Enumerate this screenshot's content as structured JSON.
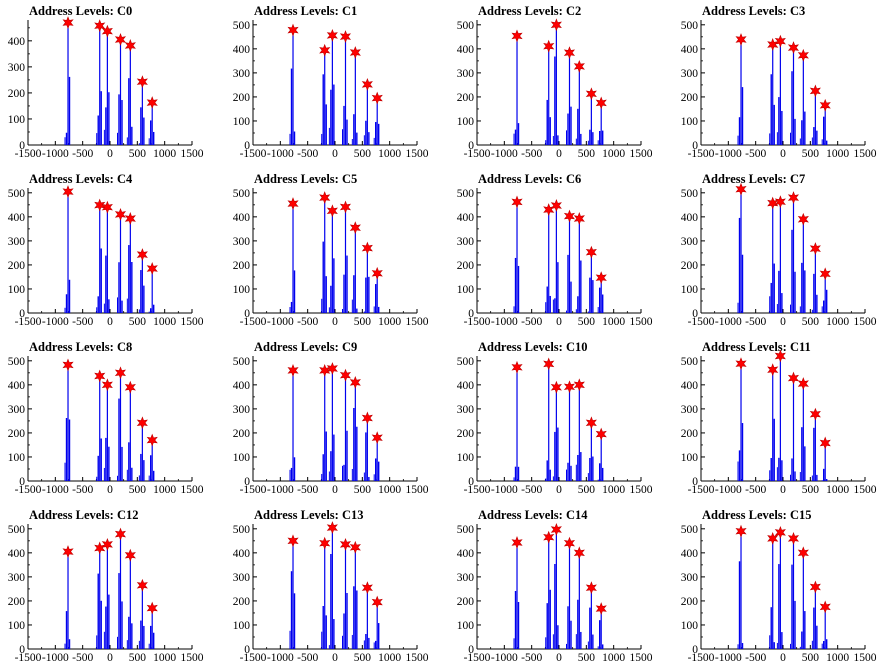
{
  "window": {
    "title": "Address Levels"
  },
  "chart_data": [
    {
      "type": "bar",
      "title": "Address Levels: C0",
      "xlim": [
        -1500,
        1500
      ],
      "ylim": [
        0,
        480
      ],
      "xticks": [
        -1500,
        -1000,
        -500,
        0,
        500,
        1000,
        1500
      ],
      "xtick_labels": [
        "-1500",
        "-1000",
        "-500",
        "0",
        "500",
        "1000",
        "1500"
      ],
      "yticks": [
        0,
        100,
        200,
        300,
        400
      ],
      "ytick_labels": [
        "0",
        "100",
        "200",
        "300",
        "400"
      ],
      "peaks": [
        {
          "x": -768,
          "y": 470
        },
        {
          "x": -188,
          "y": 458
        },
        {
          "x": -48,
          "y": 437
        },
        {
          "x": 192,
          "y": 405
        },
        {
          "x": 372,
          "y": 382
        },
        {
          "x": 592,
          "y": 243
        },
        {
          "x": 772,
          "y": 163
        }
      ]
    },
    {
      "type": "bar",
      "title": "Address Levels: C1",
      "xlim": [
        -1500,
        1500
      ],
      "ylim": [
        0,
        520
      ],
      "xticks": [
        -1500,
        -1000,
        -500,
        0,
        500,
        1000,
        1500
      ],
      "xtick_labels": [
        "-1500",
        "-1000",
        "-500",
        "0",
        "500",
        "1000",
        "1500"
      ],
      "yticks": [
        0,
        100,
        200,
        300,
        400,
        500
      ],
      "ytick_labels": [
        "0",
        "100",
        "200",
        "300",
        "400",
        "500"
      ],
      "peaks": [
        {
          "x": -768,
          "y": 478
        },
        {
          "x": -188,
          "y": 394
        },
        {
          "x": -48,
          "y": 456
        },
        {
          "x": 192,
          "y": 451
        },
        {
          "x": 372,
          "y": 385
        },
        {
          "x": 592,
          "y": 252
        },
        {
          "x": 772,
          "y": 195
        }
      ]
    },
    {
      "type": "bar",
      "title": "Address Levels: C2",
      "xlim": [
        -1500,
        1500
      ],
      "ylim": [
        0,
        520
      ],
      "xticks": [
        -1500,
        -1000,
        -500,
        0,
        500,
        1000,
        1500
      ],
      "xtick_labels": [
        "-1500",
        "-1000",
        "-500",
        "0",
        "500",
        "1000",
        "1500"
      ],
      "yticks": [
        0,
        100,
        200,
        300,
        400,
        500
      ],
      "ytick_labels": [
        "0",
        "100",
        "200",
        "300",
        "400",
        "500"
      ],
      "peaks": [
        {
          "x": -768,
          "y": 454
        },
        {
          "x": -188,
          "y": 411
        },
        {
          "x": -48,
          "y": 500
        },
        {
          "x": 192,
          "y": 384
        },
        {
          "x": 372,
          "y": 327
        },
        {
          "x": 592,
          "y": 213
        },
        {
          "x": 772,
          "y": 175
        }
      ]
    },
    {
      "type": "bar",
      "title": "Address Levels: C3",
      "xlim": [
        -1500,
        1500
      ],
      "ylim": [
        0,
        520
      ],
      "xticks": [
        -1500,
        -1000,
        -500,
        0,
        500,
        1000,
        1500
      ],
      "xtick_labels": [
        "-1500",
        "-1000",
        "-500",
        "0",
        "500",
        "1000",
        "1500"
      ],
      "yticks": [
        0,
        100,
        200,
        300,
        400,
        500
      ],
      "ytick_labels": [
        "0",
        "100",
        "200",
        "300",
        "400",
        "500"
      ],
      "peaks": [
        {
          "x": -768,
          "y": 439
        },
        {
          "x": -188,
          "y": 418
        },
        {
          "x": -48,
          "y": 432
        },
        {
          "x": 192,
          "y": 405
        },
        {
          "x": 372,
          "y": 373
        },
        {
          "x": 592,
          "y": 225
        },
        {
          "x": 772,
          "y": 165
        }
      ]
    },
    {
      "type": "bar",
      "title": "Address Levels: C4",
      "xlim": [
        -1500,
        1500
      ],
      "ylim": [
        0,
        520
      ],
      "xticks": [
        -1500,
        -1000,
        -500,
        0,
        500,
        1000,
        1500
      ],
      "xtick_labels": [
        "-1500",
        "-1000",
        "-500",
        "0",
        "500",
        "1000",
        "1500"
      ],
      "yticks": [
        0,
        100,
        200,
        300,
        400,
        500
      ],
      "ytick_labels": [
        "0",
        "100",
        "200",
        "300",
        "400",
        "500"
      ],
      "peaks": [
        {
          "x": -768,
          "y": 505
        },
        {
          "x": -188,
          "y": 449
        },
        {
          "x": -48,
          "y": 440
        },
        {
          "x": 192,
          "y": 410
        },
        {
          "x": 372,
          "y": 393
        },
        {
          "x": 592,
          "y": 243
        },
        {
          "x": 772,
          "y": 185
        }
      ]
    },
    {
      "type": "bar",
      "title": "Address Levels: C5",
      "xlim": [
        -1500,
        1500
      ],
      "ylim": [
        0,
        520
      ],
      "xticks": [
        -1500,
        -1000,
        -500,
        0,
        500,
        1000,
        1500
      ],
      "xtick_labels": [
        "-1500",
        "-1000",
        "-500",
        "0",
        "500",
        "1000",
        "1500"
      ],
      "yticks": [
        0,
        100,
        200,
        300,
        400,
        500
      ],
      "ytick_labels": [
        "0",
        "100",
        "200",
        "300",
        "400",
        "500"
      ],
      "peaks": [
        {
          "x": -768,
          "y": 455
        },
        {
          "x": -188,
          "y": 480
        },
        {
          "x": -48,
          "y": 425
        },
        {
          "x": 192,
          "y": 441
        },
        {
          "x": 372,
          "y": 355
        },
        {
          "x": 592,
          "y": 270
        },
        {
          "x": 772,
          "y": 165
        }
      ]
    },
    {
      "type": "bar",
      "title": "Address Levels: C6",
      "xlim": [
        -1500,
        1500
      ],
      "ylim": [
        0,
        520
      ],
      "xticks": [
        -1500,
        -1000,
        -500,
        0,
        500,
        1000,
        1500
      ],
      "xtick_labels": [
        "-1500",
        "-1000",
        "-500",
        "0",
        "500",
        "1000",
        "1500"
      ],
      "yticks": [
        0,
        100,
        200,
        300,
        400,
        500
      ],
      "ytick_labels": [
        "0",
        "100",
        "200",
        "300",
        "400",
        "500"
      ],
      "peaks": [
        {
          "x": -768,
          "y": 462
        },
        {
          "x": -188,
          "y": 430
        },
        {
          "x": -48,
          "y": 447
        },
        {
          "x": 192,
          "y": 403
        },
        {
          "x": 372,
          "y": 393
        },
        {
          "x": 592,
          "y": 253
        },
        {
          "x": 772,
          "y": 147
        }
      ]
    },
    {
      "type": "bar",
      "title": "Address Levels: C7",
      "xlim": [
        -1500,
        1500
      ],
      "ylim": [
        0,
        520
      ],
      "xticks": [
        -1500,
        -1000,
        -500,
        0,
        500,
        1000,
        1500
      ],
      "xtick_labels": [
        "-1500",
        "-1000",
        "-500",
        "0",
        "500",
        "1000",
        "1500"
      ],
      "yticks": [
        0,
        100,
        200,
        300,
        400,
        500
      ],
      "ytick_labels": [
        "0",
        "100",
        "200",
        "300",
        "400",
        "500"
      ],
      "peaks": [
        {
          "x": -768,
          "y": 515
        },
        {
          "x": -188,
          "y": 457
        },
        {
          "x": -48,
          "y": 463
        },
        {
          "x": 192,
          "y": 480
        },
        {
          "x": 372,
          "y": 390
        },
        {
          "x": 592,
          "y": 268
        },
        {
          "x": 772,
          "y": 163
        }
      ]
    },
    {
      "type": "bar",
      "title": "Address Levels: C8",
      "xlim": [
        -1500,
        1500
      ],
      "ylim": [
        0,
        520
      ],
      "xticks": [
        -1500,
        -1000,
        -500,
        0,
        500,
        1000,
        1500
      ],
      "xtick_labels": [
        "-1500",
        "-1000",
        "-500",
        "0",
        "500",
        "1000",
        "1500"
      ],
      "yticks": [
        0,
        100,
        200,
        300,
        400,
        500
      ],
      "ytick_labels": [
        "0",
        "100",
        "200",
        "300",
        "400",
        "500"
      ],
      "peaks": [
        {
          "x": -768,
          "y": 483
        },
        {
          "x": -188,
          "y": 437
        },
        {
          "x": -48,
          "y": 400
        },
        {
          "x": 192,
          "y": 450
        },
        {
          "x": 372,
          "y": 390
        },
        {
          "x": 592,
          "y": 242
        },
        {
          "x": 772,
          "y": 170
        }
      ]
    },
    {
      "type": "bar",
      "title": "Address Levels: C9",
      "xlim": [
        -1500,
        1500
      ],
      "ylim": [
        0,
        520
      ],
      "xticks": [
        -1500,
        -1000,
        -500,
        0,
        500,
        1000,
        1500
      ],
      "xtick_labels": [
        "-1500",
        "-1000",
        "-500",
        "0",
        "500",
        "1000",
        "1500"
      ],
      "yticks": [
        0,
        100,
        200,
        300,
        400,
        500
      ],
      "ytick_labels": [
        "0",
        "100",
        "200",
        "300",
        "400",
        "500"
      ],
      "peaks": [
        {
          "x": -768,
          "y": 460
        },
        {
          "x": -188,
          "y": 460
        },
        {
          "x": -48,
          "y": 468
        },
        {
          "x": 192,
          "y": 440
        },
        {
          "x": 372,
          "y": 410
        },
        {
          "x": 592,
          "y": 262
        },
        {
          "x": 772,
          "y": 180
        }
      ]
    },
    {
      "type": "bar",
      "title": "Address Levels: C10",
      "xlim": [
        -1500,
        1500
      ],
      "ylim": [
        0,
        520
      ],
      "xticks": [
        -1500,
        -1000,
        -500,
        0,
        500,
        1000,
        1500
      ],
      "xtick_labels": [
        "-1500",
        "-1000",
        "-500",
        "0",
        "500",
        "1000",
        "1500"
      ],
      "yticks": [
        0,
        100,
        200,
        300,
        400,
        500
      ],
      "ytick_labels": [
        "0",
        "100",
        "200",
        "300",
        "400",
        "500"
      ],
      "peaks": [
        {
          "x": -768,
          "y": 473
        },
        {
          "x": -188,
          "y": 487
        },
        {
          "x": -48,
          "y": 390
        },
        {
          "x": 192,
          "y": 392
        },
        {
          "x": 372,
          "y": 400
        },
        {
          "x": 592,
          "y": 242
        },
        {
          "x": 772,
          "y": 195
        }
      ]
    },
    {
      "type": "bar",
      "title": "Address Levels: C11",
      "xlim": [
        -1500,
        1500
      ],
      "ylim": [
        0,
        520
      ],
      "xticks": [
        -1500,
        -1000,
        -500,
        0,
        500,
        1000,
        1500
      ],
      "xtick_labels": [
        "-1500",
        "-1000",
        "-500",
        "0",
        "500",
        "1000",
        "1500"
      ],
      "yticks": [
        0,
        100,
        200,
        300,
        400,
        500
      ],
      "ytick_labels": [
        "0",
        "100",
        "200",
        "300",
        "400",
        "500"
      ],
      "peaks": [
        {
          "x": -768,
          "y": 488
        },
        {
          "x": -188,
          "y": 463
        },
        {
          "x": -48,
          "y": 520
        },
        {
          "x": 192,
          "y": 428
        },
        {
          "x": 372,
          "y": 405
        },
        {
          "x": 592,
          "y": 278
        },
        {
          "x": 772,
          "y": 158
        }
      ]
    },
    {
      "type": "bar",
      "title": "Address Levels: C12",
      "xlim": [
        -1500,
        1500
      ],
      "ylim": [
        0,
        520
      ],
      "xticks": [
        -1500,
        -1000,
        -500,
        0,
        500,
        1000,
        1500
      ],
      "xtick_labels": [
        "-1500",
        "-1000",
        "-500",
        "0",
        "500",
        "1000",
        "1500"
      ],
      "yticks": [
        0,
        100,
        200,
        300,
        400,
        500
      ],
      "ytick_labels": [
        "0",
        "100",
        "200",
        "300",
        "400",
        "500"
      ],
      "peaks": [
        {
          "x": -768,
          "y": 405
        },
        {
          "x": -188,
          "y": 420
        },
        {
          "x": -48,
          "y": 435
        },
        {
          "x": 192,
          "y": 478
        },
        {
          "x": 372,
          "y": 390
        },
        {
          "x": 592,
          "y": 265
        },
        {
          "x": 772,
          "y": 170
        }
      ]
    },
    {
      "type": "bar",
      "title": "Address Levels: C13",
      "xlim": [
        -1500,
        1500
      ],
      "ylim": [
        0,
        520
      ],
      "xticks": [
        -1500,
        -1000,
        -500,
        0,
        500,
        1000,
        1500
      ],
      "xtick_labels": [
        "-1500",
        "-1000",
        "-500",
        "0",
        "500",
        "1000",
        "1500"
      ],
      "yticks": [
        0,
        100,
        200,
        300,
        400,
        500
      ],
      "ytick_labels": [
        "0",
        "100",
        "200",
        "300",
        "400",
        "500"
      ],
      "peaks": [
        {
          "x": -768,
          "y": 450
        },
        {
          "x": -188,
          "y": 440
        },
        {
          "x": -48,
          "y": 505
        },
        {
          "x": 192,
          "y": 435
        },
        {
          "x": 372,
          "y": 423
        },
        {
          "x": 592,
          "y": 255
        },
        {
          "x": 772,
          "y": 195
        }
      ]
    },
    {
      "type": "bar",
      "title": "Address Levels: C14",
      "xlim": [
        -1500,
        1500
      ],
      "ylim": [
        0,
        520
      ],
      "xticks": [
        -1500,
        -1000,
        -500,
        0,
        500,
        1000,
        1500
      ],
      "xtick_labels": [
        "-1500",
        "-1000",
        "-500",
        "0",
        "500",
        "1000",
        "1500"
      ],
      "yticks": [
        0,
        100,
        200,
        300,
        400,
        500
      ],
      "ytick_labels": [
        "0",
        "100",
        "200",
        "300",
        "400",
        "500"
      ],
      "peaks": [
        {
          "x": -768,
          "y": 443
        },
        {
          "x": -188,
          "y": 465
        },
        {
          "x": -48,
          "y": 497
        },
        {
          "x": 192,
          "y": 440
        },
        {
          "x": 372,
          "y": 400
        },
        {
          "x": 592,
          "y": 255
        },
        {
          "x": 772,
          "y": 168
        }
      ]
    },
    {
      "type": "bar",
      "title": "Address Levels: C15",
      "xlim": [
        -1500,
        1500
      ],
      "ylim": [
        0,
        520
      ],
      "xticks": [
        -1500,
        -1000,
        -500,
        0,
        500,
        1000,
        1500
      ],
      "xtick_labels": [
        "-1500",
        "-1000",
        "-500",
        "0",
        "500",
        "1000",
        "1500"
      ],
      "yticks": [
        0,
        100,
        200,
        300,
        400,
        500
      ],
      "ytick_labels": [
        "0",
        "100",
        "200",
        "300",
        "400",
        "500"
      ],
      "peaks": [
        {
          "x": -768,
          "y": 490
        },
        {
          "x": -188,
          "y": 460
        },
        {
          "x": -48,
          "y": 485
        },
        {
          "x": 192,
          "y": 460
        },
        {
          "x": 372,
          "y": 400
        },
        {
          "x": 592,
          "y": 258
        },
        {
          "x": 772,
          "y": 175
        }
      ]
    }
  ],
  "colors": {
    "bar": "#0000ee",
    "marker_fill": "#ff0000",
    "marker_stroke": "#c00000",
    "axis": "#000000"
  }
}
